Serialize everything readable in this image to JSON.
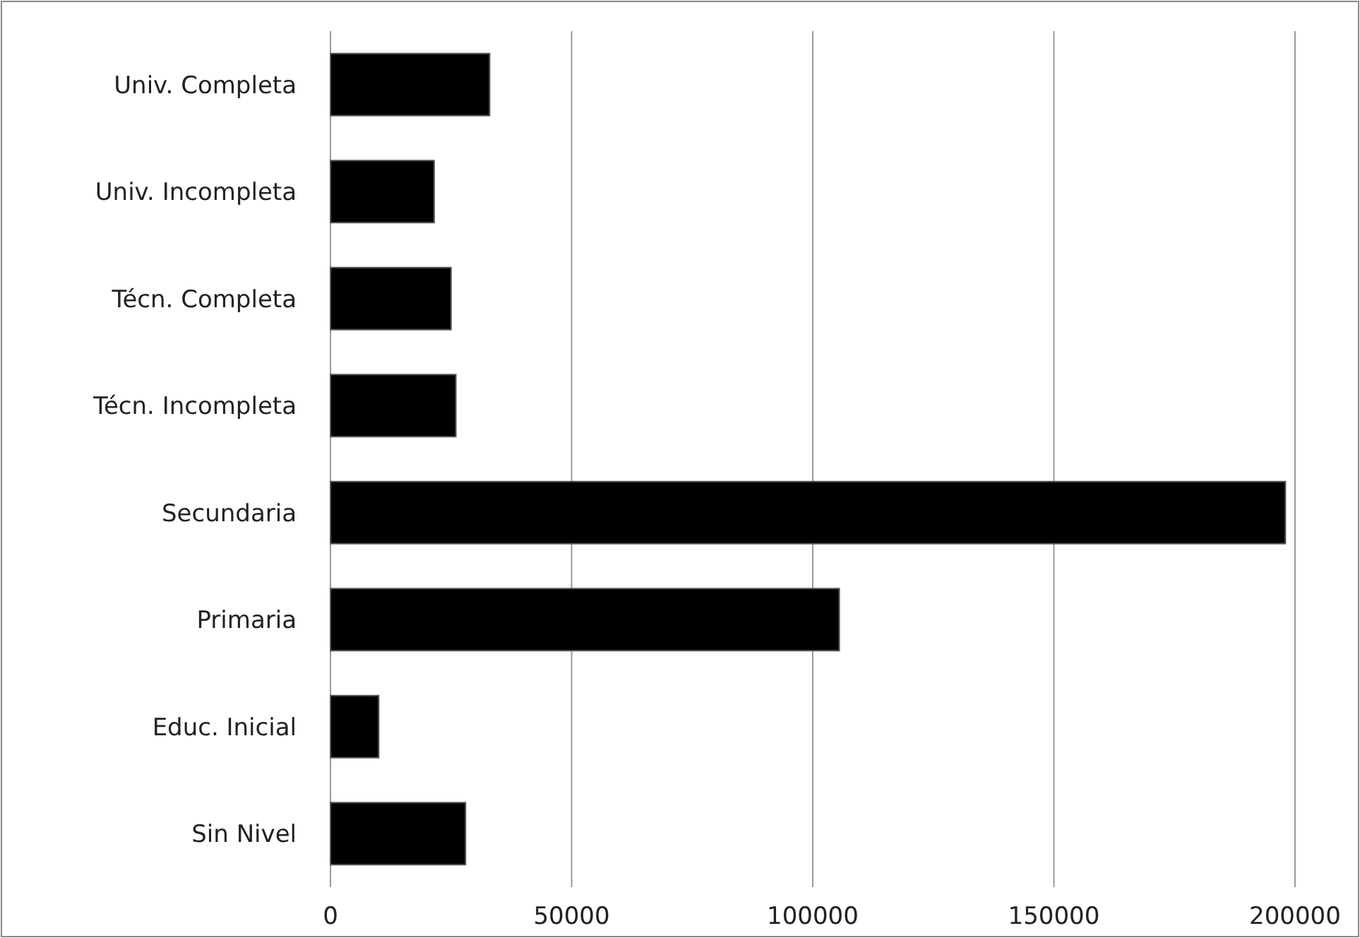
{
  "chart_data": {
    "type": "bar",
    "orientation": "horizontal",
    "categories": [
      "Univ. Completa",
      "Univ. Incompleta",
      "Técn. Completa",
      "Técn. Incompleta",
      "Secundaria",
      "Primaria",
      "Educ. Inicial",
      "Sin Nivel"
    ],
    "values": [
      33000,
      21500,
      25000,
      26000,
      198000,
      105500,
      10000,
      28000
    ],
    "color": "#000000",
    "xlim": [
      0,
      200000
    ],
    "xticks": [
      0,
      50000,
      100000,
      150000,
      200000
    ],
    "grid": "x"
  }
}
